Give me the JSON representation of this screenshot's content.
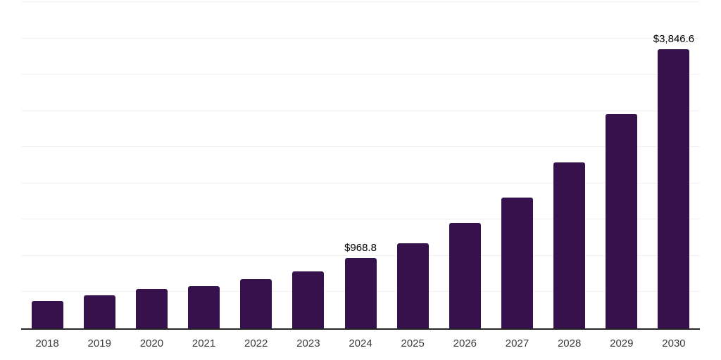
{
  "chart_data": {
    "type": "bar",
    "title": "",
    "xlabel": "",
    "ylabel": "",
    "categories": [
      "2018",
      "2019",
      "2020",
      "2021",
      "2022",
      "2023",
      "2024",
      "2025",
      "2026",
      "2027",
      "2028",
      "2029",
      "2030"
    ],
    "values": [
      380,
      455,
      540,
      580,
      675,
      790,
      968.8,
      1175,
      1455,
      1805,
      2290,
      2955,
      3846.6
    ],
    "data_labels": [
      "",
      "",
      "",
      "",
      "",
      "",
      "$968.8",
      "",
      "",
      "",
      "",
      "",
      "$3,846.6"
    ],
    "ylim": [
      0,
      4500
    ],
    "gridline_step": 500,
    "grid": true,
    "legend": false,
    "y_tick_labels_visible": false,
    "bar_color": "#36114C",
    "axis_line_color": "#262626",
    "gridline_color": "#F1F1F1",
    "x_tick_label_color": "#3A3A3A",
    "data_label_color": "#000000",
    "background_color": "#FFFFFF"
  }
}
